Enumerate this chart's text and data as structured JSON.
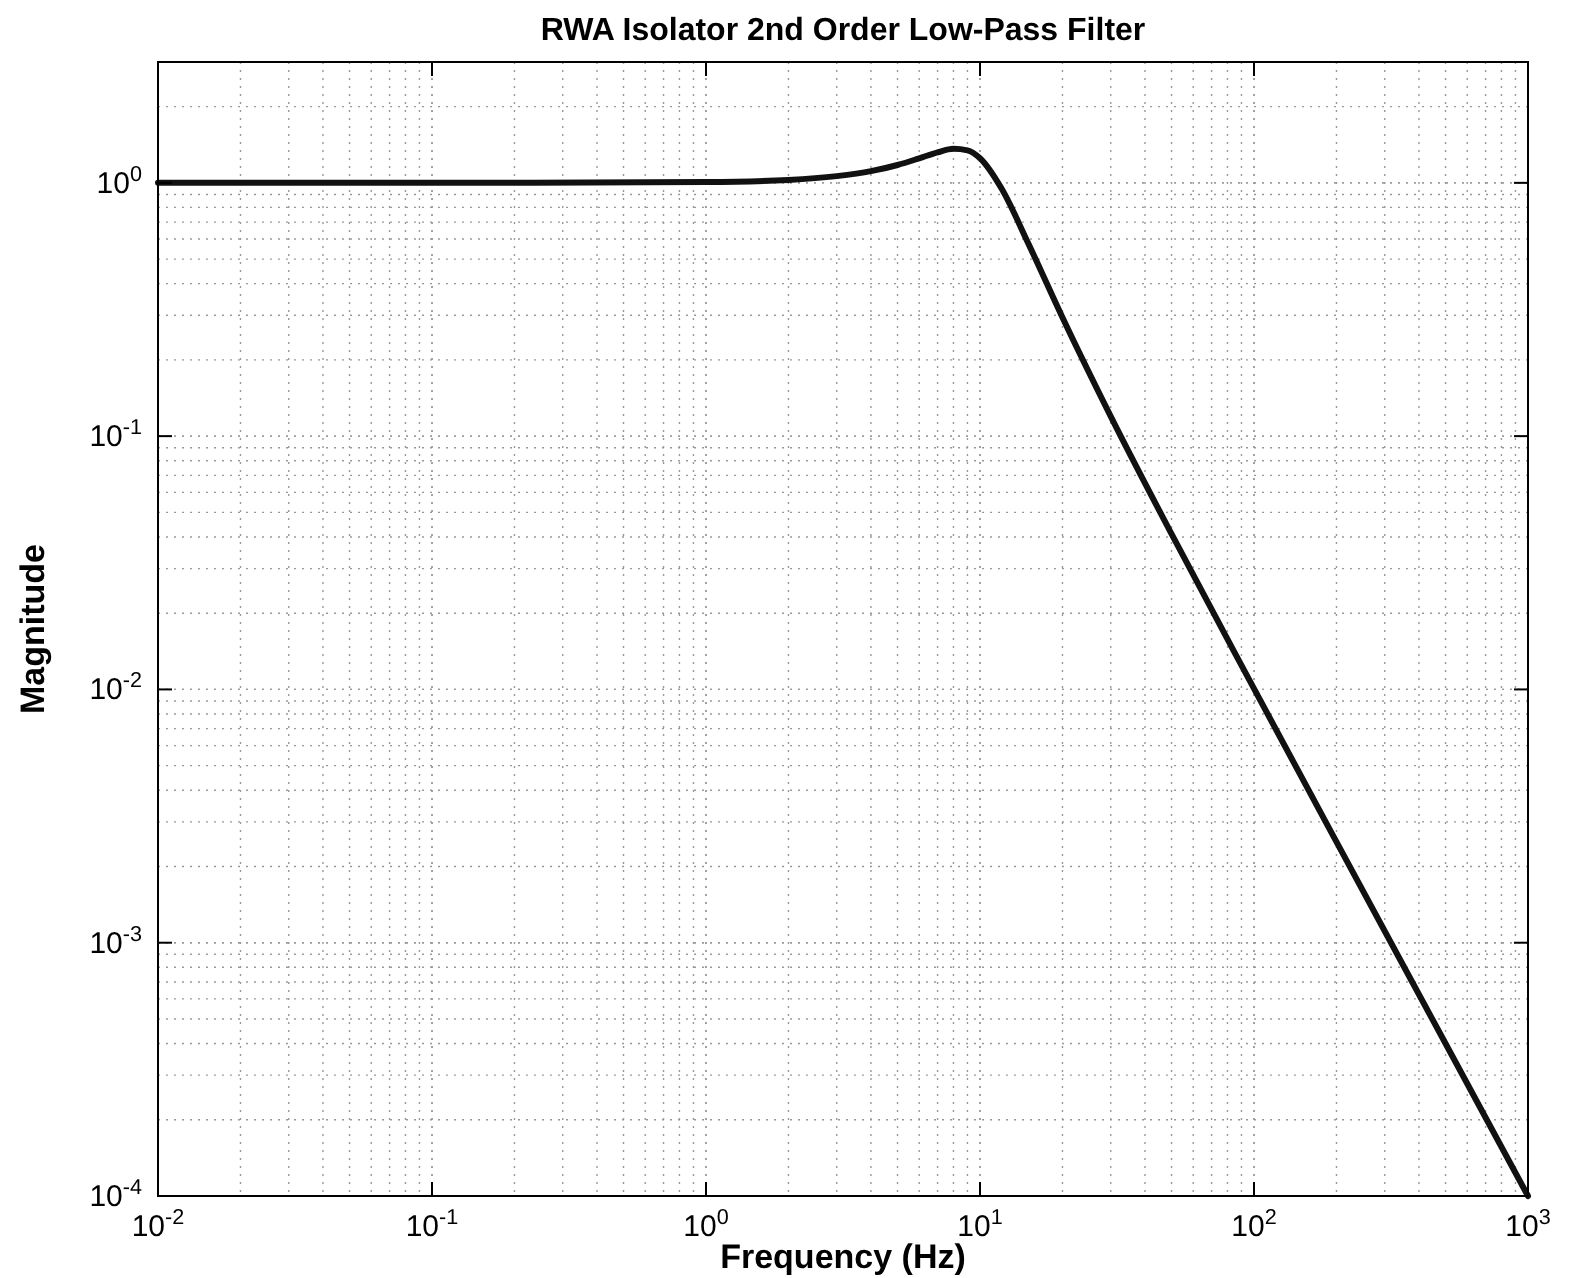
{
  "chart_data": {
    "type": "line",
    "title": "RWA Isolator 2nd Order Low-Pass Filter",
    "xlabel": "Frequency (Hz)",
    "ylabel": "Magnitude",
    "log": "xy",
    "grid": true,
    "line_style": "solid",
    "marker": "none",
    "x": [
      0.01,
      0.1,
      1,
      2,
      3,
      4,
      5,
      6,
      7,
      8,
      9,
      10,
      12,
      15,
      20,
      30,
      50,
      100,
      200,
      500,
      1000
    ],
    "series": [
      {
        "color": "#111111",
        "values": [
          1.0,
          1.0,
          1.007,
          1.027,
          1.063,
          1.112,
          1.176,
          1.25,
          1.32,
          1.362,
          1.343,
          1.25,
          0.947,
          0.577,
          0.294,
          0.1197,
          0.0411,
          0.01007,
          0.0025,
          0.0004,
          0.0001
        ]
      }
    ],
    "xlim": [
      0.01,
      1000
    ],
    "ylim": [
      0.0001,
      3
    ],
    "xticks": [
      {
        "value": 0.01,
        "label": "10$^{-2}$"
      },
      {
        "value": 0.1,
        "label": "10$^{-1}$"
      },
      {
        "value": 1,
        "label": "10$^{0}$"
      },
      {
        "value": 10,
        "label": "10$^{1}$"
      },
      {
        "value": 100,
        "label": "10$^{2}$"
      },
      {
        "value": 1000,
        "label": "10$^{3}$"
      }
    ],
    "yticks": [
      {
        "value": 0.0001,
        "label": "10$^{-4}$"
      },
      {
        "value": 0.001,
        "label": "10$^{-3}$"
      },
      {
        "value": 0.01,
        "label": "10$^{-2}$"
      },
      {
        "value": 0.1,
        "label": "10$^{-1}$"
      },
      {
        "value": 1,
        "label": "10$^{0}$"
      }
    ]
  }
}
